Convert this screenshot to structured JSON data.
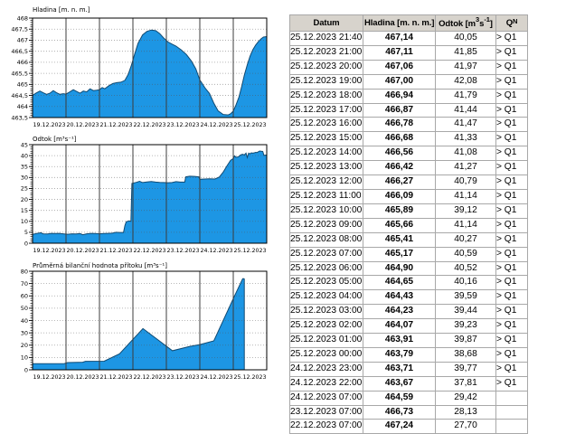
{
  "colors": {
    "chart_fill": "#1d96e4",
    "chart_line": "#0f4a73",
    "grid_vertical": "#3c3c3c",
    "table_header_bg": "#d7d3cc",
    "table_border": "#a8a8a8"
  },
  "chart_data": [
    {
      "type": "area",
      "title": "Hladina [m. n. m.]",
      "ylim": [
        463.5,
        468
      ],
      "yticks": [
        "468",
        "467,5",
        "467",
        "466,5",
        "466",
        "465,5",
        "465",
        "464,5",
        "464",
        "463,5"
      ],
      "minor_per_major": 5,
      "x_span_days": 7,
      "x_categories": [
        "19.12.2023",
        "20.12.2023",
        "21.12.2023",
        "22.12.2023",
        "23.12.2023",
        "24.12.2023",
        "25.12.2023"
      ],
      "grid": true,
      "legend": "none",
      "end_drop": false,
      "points": [
        [
          0,
          464.5
        ],
        [
          0.1,
          464.6
        ],
        [
          0.22,
          464.7
        ],
        [
          0.32,
          464.62
        ],
        [
          0.42,
          464.55
        ],
        [
          0.52,
          464.6
        ],
        [
          0.62,
          464.72
        ],
        [
          0.72,
          464.62
        ],
        [
          0.82,
          464.55
        ],
        [
          0.92,
          464.58
        ],
        [
          1.0,
          464.56
        ],
        [
          1.1,
          464.65
        ],
        [
          1.22,
          464.76
        ],
        [
          1.32,
          464.68
        ],
        [
          1.42,
          464.6
        ],
        [
          1.52,
          464.7
        ],
        [
          1.62,
          464.66
        ],
        [
          1.72,
          464.8
        ],
        [
          1.82,
          464.72
        ],
        [
          1.92,
          464.74
        ],
        [
          2.0,
          464.76
        ],
        [
          2.08,
          464.86
        ],
        [
          2.16,
          464.8
        ],
        [
          2.28,
          464.94
        ],
        [
          2.4,
          465.04
        ],
        [
          2.52,
          465.08
        ],
        [
          2.64,
          465.1
        ],
        [
          2.76,
          465.18
        ],
        [
          2.86,
          465.45
        ],
        [
          2.95,
          465.85
        ],
        [
          3.05,
          466.35
        ],
        [
          3.15,
          466.85
        ],
        [
          3.29,
          467.24
        ],
        [
          3.42,
          467.4
        ],
        [
          3.55,
          467.46
        ],
        [
          3.68,
          467.43
        ],
        [
          3.8,
          467.3
        ],
        [
          3.92,
          467.1
        ],
        [
          4.05,
          466.92
        ],
        [
          4.17,
          466.82
        ],
        [
          4.29,
          466.73
        ],
        [
          4.45,
          466.55
        ],
        [
          4.6,
          466.35
        ],
        [
          4.75,
          466.05
        ],
        [
          4.88,
          465.7
        ],
        [
          5.0,
          465.2
        ],
        [
          5.15,
          464.85
        ],
        [
          5.29,
          464.59
        ],
        [
          5.42,
          464.15
        ],
        [
          5.55,
          463.8
        ],
        [
          5.7,
          463.64
        ],
        [
          5.85,
          463.62
        ],
        [
          5.92,
          463.67
        ],
        [
          6.0,
          463.79
        ],
        [
          6.08,
          464.07
        ],
        [
          6.17,
          464.43
        ],
        [
          6.25,
          464.9
        ],
        [
          6.33,
          465.41
        ],
        [
          6.42,
          465.89
        ],
        [
          6.5,
          466.27
        ],
        [
          6.58,
          466.56
        ],
        [
          6.67,
          466.78
        ],
        [
          6.75,
          466.94
        ],
        [
          6.83,
          467.06
        ],
        [
          6.9,
          467.14
        ],
        [
          7.0,
          467.16
        ]
      ]
    },
    {
      "type": "area",
      "title": "Odtok [m³s⁻¹]",
      "ylim": [
        0,
        45
      ],
      "yticks": [
        "45",
        "40",
        "35",
        "30",
        "25",
        "20",
        "15",
        "10",
        "5",
        "0"
      ],
      "minor_per_major": 5,
      "x_span_days": 7,
      "x_categories": [
        "19.12.2023",
        "20.12.2023",
        "21.12.2023",
        "22.12.2023",
        "23.12.2023",
        "24.12.2023",
        "25.12.2023"
      ],
      "grid": true,
      "legend": "none",
      "end_drop": false,
      "points": [
        [
          0,
          4.0
        ],
        [
          0.12,
          4.4
        ],
        [
          0.25,
          4.8
        ],
        [
          0.32,
          4.3
        ],
        [
          0.45,
          4.2
        ],
        [
          0.55,
          4.5
        ],
        [
          0.68,
          4.4
        ],
        [
          0.8,
          4.5
        ],
        [
          0.92,
          4.3
        ],
        [
          1.05,
          4.1
        ],
        [
          1.18,
          4.3
        ],
        [
          1.3,
          4.2
        ],
        [
          1.42,
          4.4
        ],
        [
          1.5,
          3.9
        ],
        [
          1.62,
          4.3
        ],
        [
          1.75,
          4.5
        ],
        [
          1.88,
          4.4
        ],
        [
          2.0,
          4.3
        ],
        [
          2.12,
          4.4
        ],
        [
          2.25,
          4.5
        ],
        [
          2.38,
          4.6
        ],
        [
          2.5,
          5.0
        ],
        [
          2.6,
          4.9
        ],
        [
          2.72,
          4.9
        ],
        [
          2.76,
          8.0
        ],
        [
          2.8,
          9.8
        ],
        [
          2.88,
          10.2
        ],
        [
          2.94,
          10.0
        ],
        [
          2.97,
          27.3
        ],
        [
          3.1,
          27.8
        ],
        [
          3.2,
          28.3
        ],
        [
          3.29,
          27.7
        ],
        [
          3.42,
          28.0
        ],
        [
          3.55,
          28.2
        ],
        [
          3.68,
          27.9
        ],
        [
          3.8,
          27.8
        ],
        [
          3.92,
          27.7
        ],
        [
          4.05,
          27.6
        ],
        [
          4.17,
          27.7
        ],
        [
          4.29,
          28.1
        ],
        [
          4.42,
          27.9
        ],
        [
          4.55,
          27.9
        ],
        [
          4.58,
          30.3
        ],
        [
          4.7,
          30.6
        ],
        [
          4.85,
          30.5
        ],
        [
          4.97,
          30.3
        ],
        [
          5.0,
          29.2
        ],
        [
          5.15,
          29.3
        ],
        [
          5.29,
          29.4
        ],
        [
          5.45,
          29.3
        ],
        [
          5.58,
          30.2
        ],
        [
          5.7,
          32.5
        ],
        [
          5.82,
          35.5
        ],
        [
          5.92,
          37.8
        ],
        [
          6.0,
          38.7
        ],
        [
          6.04,
          39.9
        ],
        [
          6.08,
          39.2
        ],
        [
          6.13,
          39.4
        ],
        [
          6.17,
          39.6
        ],
        [
          6.21,
          40.2
        ],
        [
          6.25,
          40.5
        ],
        [
          6.29,
          40.6
        ],
        [
          6.33,
          40.3
        ],
        [
          6.38,
          41.1
        ],
        [
          6.42,
          39.1
        ],
        [
          6.46,
          41.1
        ],
        [
          6.5,
          40.8
        ],
        [
          6.54,
          41.3
        ],
        [
          6.58,
          41.1
        ],
        [
          6.63,
          41.3
        ],
        [
          6.67,
          41.5
        ],
        [
          6.71,
          41.4
        ],
        [
          6.75,
          41.8
        ],
        [
          6.79,
          42.1
        ],
        [
          6.83,
          42.0
        ],
        [
          6.88,
          41.9
        ],
        [
          6.92,
          40.1
        ],
        [
          7.0,
          40.3
        ]
      ]
    },
    {
      "type": "area",
      "title": "Průměrná bilanční hodnota přítoku   [m³s⁻¹]",
      "ylim": [
        0,
        80
      ],
      "yticks": [
        "80",
        "70",
        "60",
        "50",
        "40",
        "30",
        "20",
        "10",
        "0"
      ],
      "minor_per_major": 5,
      "x_span_days": 7,
      "x_categories": [
        "19.12.2023",
        "20.12.2023",
        "21.12.2023",
        "22.12.2023",
        "23.12.2023",
        "24.12.2023",
        "25.12.2023"
      ],
      "grid": true,
      "legend": "none",
      "end_drop": true,
      "points": [
        [
          0,
          5.0
        ],
        [
          0.95,
          5.1
        ],
        [
          1.05,
          5.9
        ],
        [
          1.5,
          6.2
        ],
        [
          1.58,
          6.9
        ],
        [
          2.14,
          7.0
        ],
        [
          2.6,
          13.0
        ],
        [
          3.3,
          33.5
        ],
        [
          4.18,
          15.5
        ],
        [
          4.7,
          19.0
        ],
        [
          5.0,
          20.5
        ],
        [
          5.42,
          23.5
        ],
        [
          6.03,
          59.5
        ],
        [
          6.28,
          74.0
        ],
        [
          6.33,
          74.0
        ]
      ]
    }
  ],
  "table": {
    "header": {
      "datum": "Datum",
      "hladina": "Hladina [m. n. m.]",
      "odtok_prefix": "Odtok [m",
      "odtok_sup1": "3",
      "odtok_mid": "s",
      "odtok_sup2": "-1",
      "odtok_suffix": "]",
      "q_letter": "Q",
      "q_sup": "N"
    },
    "rows": [
      [
        "25.12.2023 21:40",
        "467,14",
        "40,05",
        "> Q1"
      ],
      [
        "25.12.2023 21:00",
        "467,11",
        "41,85",
        "> Q1"
      ],
      [
        "25.12.2023 20:00",
        "467,06",
        "41,97",
        "> Q1"
      ],
      [
        "25.12.2023 19:00",
        "467,00",
        "42,08",
        "> Q1"
      ],
      [
        "25.12.2023 18:00",
        "466,94",
        "41,79",
        "> Q1"
      ],
      [
        "25.12.2023 17:00",
        "466,87",
        "41,44",
        "> Q1"
      ],
      [
        "25.12.2023 16:00",
        "466,78",
        "41,47",
        "> Q1"
      ],
      [
        "25.12.2023 15:00",
        "466,68",
        "41,33",
        "> Q1"
      ],
      [
        "25.12.2023 14:00",
        "466,56",
        "41,08",
        "> Q1"
      ],
      [
        "25.12.2023 13:00",
        "466,42",
        "41,27",
        "> Q1"
      ],
      [
        "25.12.2023 12:00",
        "466,27",
        "40,79",
        "> Q1"
      ],
      [
        "25.12.2023 11:00",
        "466,09",
        "41,14",
        "> Q1"
      ],
      [
        "25.12.2023 10:00",
        "465,89",
        "39,12",
        "> Q1"
      ],
      [
        "25.12.2023 09:00",
        "465,66",
        "41,14",
        "> Q1"
      ],
      [
        "25.12.2023 08:00",
        "465,41",
        "40,27",
        "> Q1"
      ],
      [
        "25.12.2023 07:00",
        "465,17",
        "40,59",
        "> Q1"
      ],
      [
        "25.12.2023 06:00",
        "464,90",
        "40,52",
        "> Q1"
      ],
      [
        "25.12.2023 05:00",
        "464,65",
        "40,16",
        "> Q1"
      ],
      [
        "25.12.2023 04:00",
        "464,43",
        "39,59",
        "> Q1"
      ],
      [
        "25.12.2023 03:00",
        "464,23",
        "39,44",
        "> Q1"
      ],
      [
        "25.12.2023 02:00",
        "464,07",
        "39,23",
        "> Q1"
      ],
      [
        "25.12.2023 01:00",
        "463,91",
        "39,87",
        "> Q1"
      ],
      [
        "25.12.2023 00:00",
        "463,79",
        "38,68",
        "> Q1"
      ],
      [
        "24.12.2023 23:00",
        "463,71",
        "39,77",
        "> Q1"
      ],
      [
        "24.12.2023 22:00",
        "463,67",
        "37,81",
        "> Q1"
      ],
      [
        "24.12.2023 07:00",
        "464,59",
        "29,42",
        ""
      ],
      [
        "23.12.2023 07:00",
        "466,73",
        "28,13",
        ""
      ],
      [
        "22.12.2023 07:00",
        "467,24",
        "27,70",
        ""
      ]
    ]
  }
}
